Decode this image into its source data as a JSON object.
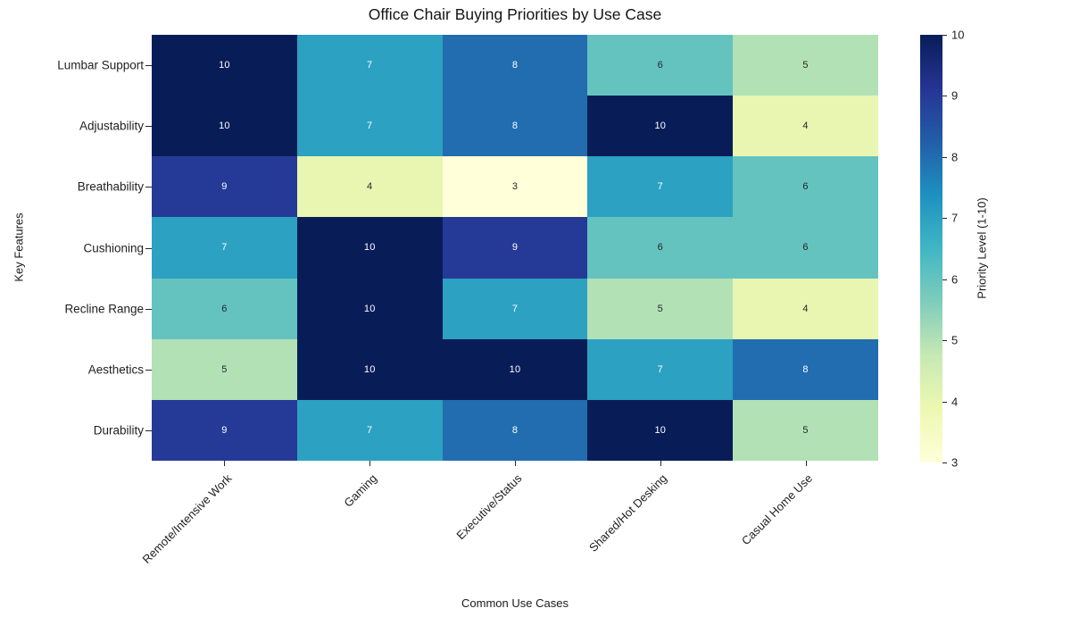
{
  "chart_data": {
    "type": "heatmap",
    "title": "Office Chair Buying Priorities by Use Case",
    "xlabel": "Common Use Cases",
    "ylabel": "Key Features",
    "columns": [
      "Remote/Intensive Work",
      "Gaming",
      "Executive/Status",
      "Shared/Hot Desking",
      "Casual Home Use"
    ],
    "rows": [
      "Lumbar Support",
      "Adjustability",
      "Breathability",
      "Cushioning",
      "Recline Range",
      "Aesthetics",
      "Durability"
    ],
    "values": [
      [
        10,
        7,
        8,
        6,
        5
      ],
      [
        10,
        7,
        8,
        10,
        4
      ],
      [
        9,
        4,
        3,
        7,
        6
      ],
      [
        7,
        10,
        9,
        6,
        6
      ],
      [
        6,
        10,
        7,
        5,
        4
      ],
      [
        5,
        10,
        10,
        7,
        8
      ],
      [
        9,
        7,
        8,
        10,
        5
      ]
    ],
    "vmin": 3,
    "vmax": 10,
    "colormap": "YlGnBu",
    "colormap_stops": [
      "#ffffd9",
      "#edf8b1",
      "#c7e9b4",
      "#7fcdbb",
      "#41b6c4",
      "#1d91c0",
      "#225ea8",
      "#253494",
      "#081d58"
    ],
    "colorbar": {
      "label": "Priority Level (1-10)",
      "ticks": [
        10,
        9,
        8,
        7,
        6,
        5,
        4,
        3
      ]
    },
    "annotation_colors": {
      "light": "#ffffff",
      "dark": "#262626"
    },
    "white_text_min_value": 7,
    "grid": "off",
    "legend_position": "right-colorbar"
  }
}
